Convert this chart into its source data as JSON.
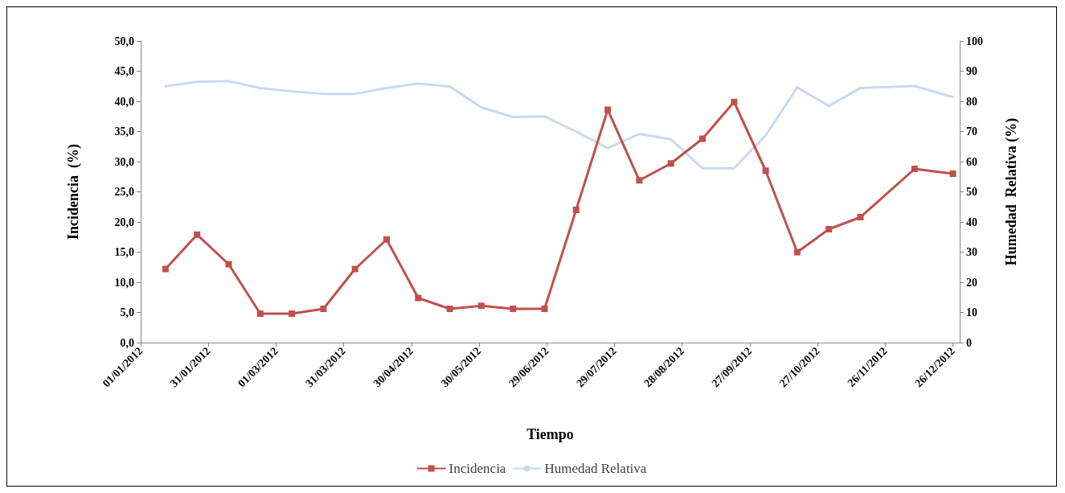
{
  "chart_data": {
    "type": "line",
    "xlabel": "Tiempo",
    "ylabel": "Incidencia  (%)",
    "y2label": "Humedad  Relativa (%)",
    "xlim": [
      "2012-01-01",
      "2012-12-29"
    ],
    "xticks": [
      {
        "value": "2012-01-01",
        "label": "01/01/2012"
      },
      {
        "value": "2012-01-31",
        "label": "31/01/2012"
      },
      {
        "value": "2012-03-01",
        "label": "01/03/2012"
      },
      {
        "value": "2012-03-31",
        "label": "31/03/2012"
      },
      {
        "value": "2012-04-30",
        "label": "30/04/2012"
      },
      {
        "value": "2012-05-30",
        "label": "30/05/2012"
      },
      {
        "value": "2012-06-29",
        "label": "29/06/2012"
      },
      {
        "value": "2012-07-29",
        "label": "29/07/2012"
      },
      {
        "value": "2012-08-28",
        "label": "28/08/2012"
      },
      {
        "value": "2012-09-27",
        "label": "27/09/2012"
      },
      {
        "value": "2012-10-27",
        "label": "27/10/2012"
      },
      {
        "value": "2012-11-26",
        "label": "26/11/2012"
      },
      {
        "value": "2012-12-26",
        "label": "26/12/2012"
      }
    ],
    "ylim": [
      0,
      50
    ],
    "yticks": [
      {
        "value": 0,
        "label": "0,0"
      },
      {
        "value": 5,
        "label": "5,0"
      },
      {
        "value": 10,
        "label": "10,0"
      },
      {
        "value": 15,
        "label": "15,0"
      },
      {
        "value": 20,
        "label": "20,0"
      },
      {
        "value": 25,
        "label": "25,0"
      },
      {
        "value": 30,
        "label": "30,0"
      },
      {
        "value": 35,
        "label": "35,0"
      },
      {
        "value": 40,
        "label": "40,0"
      },
      {
        "value": 45,
        "label": "45,0"
      },
      {
        "value": 50,
        "label": "50,0"
      }
    ],
    "y2lim": [
      0,
      100
    ],
    "y2ticks": [
      0,
      10,
      20,
      30,
      40,
      50,
      60,
      70,
      80,
      90,
      100
    ],
    "x": [
      "2012-01-12",
      "2012-01-26",
      "2012-02-09",
      "2012-02-23",
      "2012-03-08",
      "2012-03-22",
      "2012-04-05",
      "2012-04-19",
      "2012-05-03",
      "2012-05-17",
      "2012-05-31",
      "2012-06-14",
      "2012-06-28",
      "2012-07-12",
      "2012-07-26",
      "2012-08-09",
      "2012-08-23",
      "2012-09-06",
      "2012-09-20",
      "2012-10-04",
      "2012-10-18",
      "2012-11-01",
      "2012-11-15",
      "2012-12-09",
      "2012-12-26"
    ],
    "series": [
      {
        "name": "Incidencia",
        "color": "#c0504d",
        "marker": "square",
        "values": [
          12.2,
          17.9,
          13.0,
          4.8,
          4.8,
          5.6,
          12.2,
          17.1,
          7.4,
          5.6,
          6.1,
          5.6,
          5.6,
          22.0,
          38.6,
          26.9,
          29.7,
          33.8,
          39.9,
          28.5,
          15.0,
          18.8,
          20.8,
          28.8,
          28.0
        ]
      },
      {
        "name": "Humedad Relativa",
        "color": "#c6d9f1",
        "marker": "none",
        "axis": "y2",
        "values": [
          85,
          86.5,
          86.7,
          84.4,
          83.3,
          82.5,
          82.5,
          84.4,
          85.9,
          84.9,
          78,
          74.8,
          75,
          70,
          64.5,
          69.2,
          67.4,
          57.8,
          57.8,
          68.7,
          84.6,
          78.5,
          84.4,
          85.1,
          81.4
        ]
      }
    ],
    "grid": false,
    "legend": "bottom"
  }
}
